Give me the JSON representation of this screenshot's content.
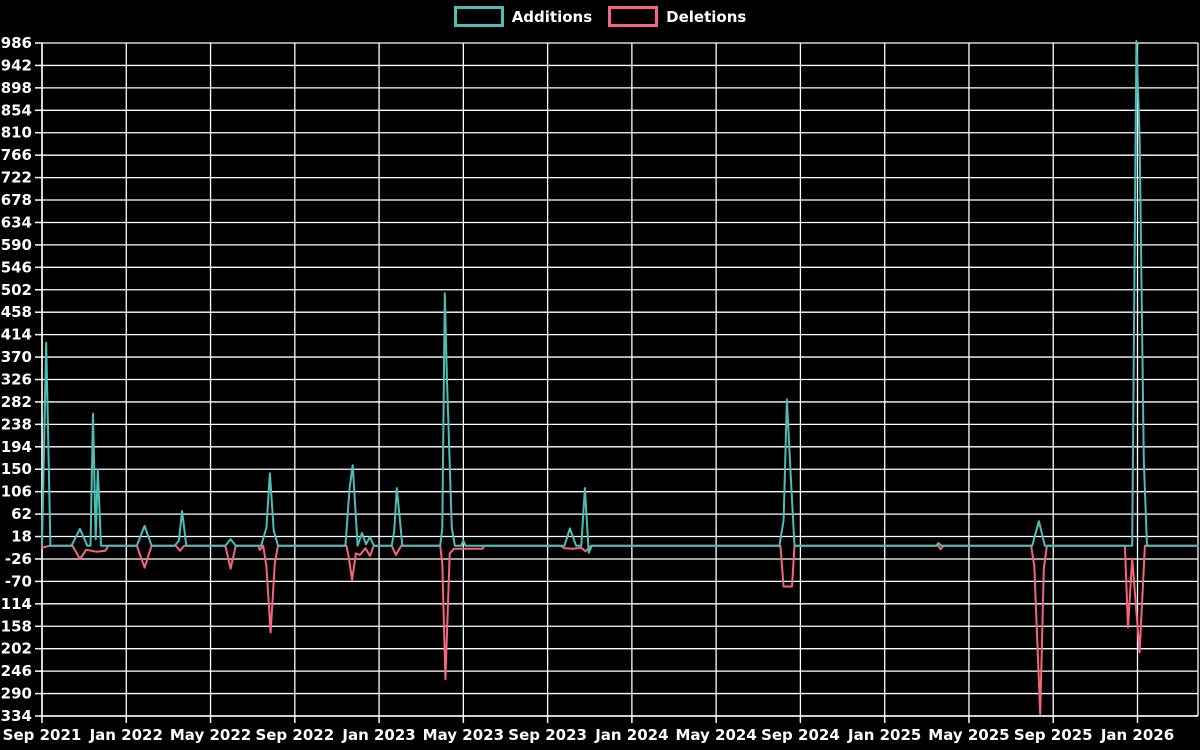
{
  "legend": {
    "items": [
      {
        "label": "Additions",
        "color": "#4dbdb8"
      },
      {
        "label": "Deletions",
        "color": "#f8637f"
      }
    ]
  },
  "colors": {
    "background": "#000000",
    "grid": "#ffffff",
    "text": "#ffffff",
    "additions": "#4dbdb8",
    "deletions": "#f8637f"
  },
  "chart_data": {
    "type": "line",
    "title": "",
    "xlabel": "",
    "ylabel": "",
    "grid": true,
    "legend_position": "top-center",
    "x_axis": {
      "unit": "months since Sep 2021",
      "tick_month_positions": [
        0,
        4,
        8,
        12,
        16,
        20,
        24,
        28,
        32,
        36,
        40,
        44,
        48,
        52
      ],
      "tick_labels": [
        "Sep 2021",
        "Jan 2022",
        "May 2022",
        "Sep 2022",
        "Jan 2023",
        "May 2023",
        "Sep 2023",
        "Jan 2024",
        "May 2024",
        "Sep 2024",
        "Jan 2025",
        "May 2025",
        "Sep 2025",
        "Jan 2026"
      ],
      "domain_months": [
        0,
        54.85
      ]
    },
    "y_axis": {
      "min": -334,
      "max": 986,
      "tick_step": 44,
      "ticks": [
        986,
        942,
        898,
        854,
        810,
        766,
        722,
        678,
        634,
        590,
        546,
        502,
        458,
        414,
        370,
        326,
        282,
        238,
        194,
        150,
        106,
        62,
        18,
        -26,
        -70,
        -114,
        -158,
        -202,
        -246,
        -290,
        -334
      ]
    },
    "series": [
      {
        "name": "Additions",
        "color": "#4dbdb8",
        "points": [
          [
            0,
            0
          ],
          [
            0.2,
            398
          ],
          [
            0.4,
            0
          ],
          [
            1.4,
            0
          ],
          [
            1.8,
            33
          ],
          [
            2.15,
            0
          ],
          [
            2.3,
            0
          ],
          [
            2.42,
            259
          ],
          [
            2.55,
            13
          ],
          [
            2.65,
            150
          ],
          [
            2.8,
            0
          ],
          [
            4.5,
            0
          ],
          [
            4.87,
            39
          ],
          [
            5.2,
            0
          ],
          [
            6.3,
            0
          ],
          [
            6.5,
            10
          ],
          [
            6.65,
            68
          ],
          [
            6.85,
            0
          ],
          [
            8.7,
            0
          ],
          [
            8.95,
            13
          ],
          [
            9.2,
            0
          ],
          [
            10.4,
            0
          ],
          [
            10.65,
            35
          ],
          [
            10.82,
            142
          ],
          [
            11.0,
            30
          ],
          [
            11.2,
            0
          ],
          [
            14.4,
            0
          ],
          [
            14.6,
            113
          ],
          [
            14.75,
            158
          ],
          [
            14.98,
            0
          ],
          [
            15.19,
            25
          ],
          [
            15.38,
            3
          ],
          [
            15.57,
            17
          ],
          [
            15.75,
            0
          ],
          [
            16.6,
            0
          ],
          [
            16.72,
            28
          ],
          [
            16.84,
            113
          ],
          [
            16.98,
            55
          ],
          [
            17.1,
            0
          ],
          [
            18.9,
            0
          ],
          [
            19.0,
            35
          ],
          [
            19.12,
            495
          ],
          [
            19.22,
            330
          ],
          [
            19.45,
            35
          ],
          [
            19.6,
            0
          ],
          [
            19.9,
            0
          ],
          [
            20.0,
            10
          ],
          [
            20.1,
            0
          ],
          [
            24.8,
            0
          ],
          [
            25.06,
            34
          ],
          [
            25.35,
            0
          ],
          [
            25.6,
            0
          ],
          [
            25.77,
            113
          ],
          [
            25.95,
            -14
          ],
          [
            26.1,
            0
          ],
          [
            35.0,
            0
          ],
          [
            35.2,
            50
          ],
          [
            35.36,
            287
          ],
          [
            35.55,
            130
          ],
          [
            35.72,
            0
          ],
          [
            42.45,
            0
          ],
          [
            42.55,
            5
          ],
          [
            42.7,
            0
          ],
          [
            47.0,
            0
          ],
          [
            47.32,
            48
          ],
          [
            47.6,
            0
          ],
          [
            51.75,
            0
          ],
          [
            51.95,
            990
          ],
          [
            52.1,
            800
          ],
          [
            52.3,
            167
          ],
          [
            52.45,
            0
          ],
          [
            54.85,
            0
          ]
        ]
      },
      {
        "name": "Deletions",
        "color": "#f8637f",
        "points": [
          [
            0,
            -4
          ],
          [
            0.35,
            0
          ],
          [
            1.45,
            0
          ],
          [
            1.8,
            -26
          ],
          [
            2.1,
            -8
          ],
          [
            2.6,
            -12
          ],
          [
            3.0,
            -10
          ],
          [
            3.15,
            0
          ],
          [
            4.5,
            0
          ],
          [
            4.87,
            -43
          ],
          [
            5.2,
            0
          ],
          [
            6.35,
            0
          ],
          [
            6.55,
            -10
          ],
          [
            6.75,
            0
          ],
          [
            8.7,
            0
          ],
          [
            8.95,
            -45
          ],
          [
            9.2,
            0
          ],
          [
            10.25,
            0
          ],
          [
            10.35,
            -8
          ],
          [
            10.5,
            0
          ],
          [
            10.65,
            -40
          ],
          [
            10.85,
            -170
          ],
          [
            11.05,
            -35
          ],
          [
            11.2,
            0
          ],
          [
            14.45,
            0
          ],
          [
            14.55,
            -20
          ],
          [
            14.72,
            -67
          ],
          [
            14.9,
            -15
          ],
          [
            15.1,
            -18
          ],
          [
            15.35,
            -5
          ],
          [
            15.57,
            -20
          ],
          [
            15.75,
            0
          ],
          [
            16.6,
            0
          ],
          [
            16.8,
            -18
          ],
          [
            17.05,
            0
          ],
          [
            18.9,
            0
          ],
          [
            19.0,
            -35
          ],
          [
            19.15,
            -262
          ],
          [
            19.35,
            -15
          ],
          [
            19.55,
            -6
          ],
          [
            20.9,
            -6
          ],
          [
            21.0,
            0
          ],
          [
            24.6,
            0
          ],
          [
            24.8,
            -5
          ],
          [
            25.2,
            -6
          ],
          [
            25.6,
            -4
          ],
          [
            25.8,
            -11
          ],
          [
            26.05,
            0
          ],
          [
            35.05,
            0
          ],
          [
            35.2,
            -80
          ],
          [
            35.6,
            -80
          ],
          [
            35.72,
            0
          ],
          [
            42.55,
            0
          ],
          [
            42.65,
            -7
          ],
          [
            42.8,
            0
          ],
          [
            46.95,
            0
          ],
          [
            47.1,
            -40
          ],
          [
            47.38,
            -330
          ],
          [
            47.55,
            -45
          ],
          [
            47.7,
            0
          ],
          [
            51.4,
            0
          ],
          [
            51.55,
            -160
          ],
          [
            51.75,
            -25
          ],
          [
            52.1,
            -209
          ],
          [
            52.35,
            0
          ],
          [
            54.85,
            0
          ]
        ]
      }
    ]
  }
}
